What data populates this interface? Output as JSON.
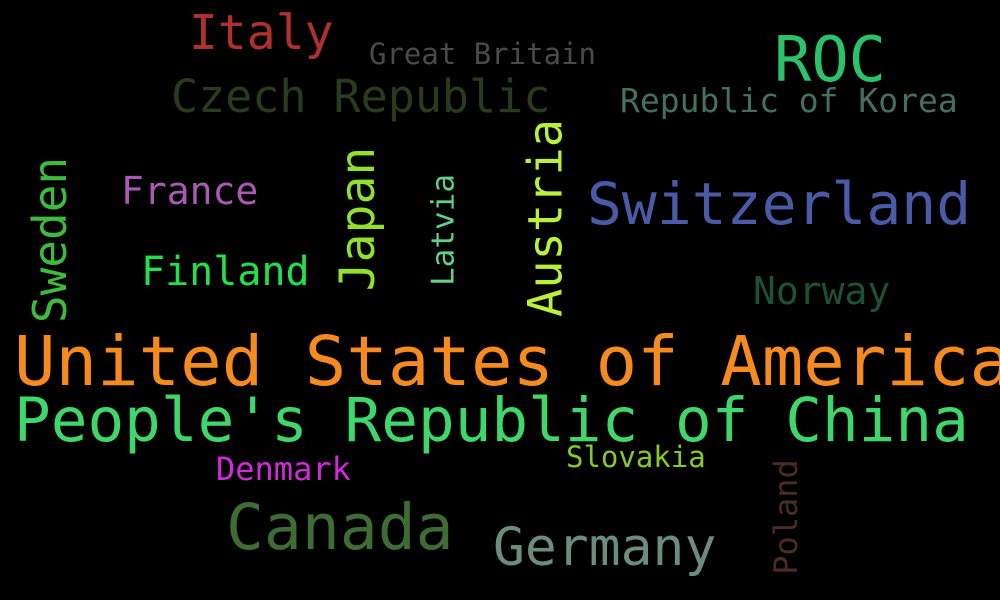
{
  "words": {
    "united_states": {
      "text": "United States of America",
      "color": "#f58a1e"
    },
    "china": {
      "text": "People's Republic of China",
      "color": "#3fd66b"
    },
    "canada": {
      "text": "Canada",
      "color": "#3f6b35"
    },
    "switzerland": {
      "text": "Switzerland",
      "color": "#4a5aa6"
    },
    "germany": {
      "text": "Germany",
      "color": "#6c8c80"
    },
    "czech_republic": {
      "text": "Czech Republic",
      "color": "#2a3a1e"
    },
    "roc": {
      "text": "ROC",
      "color": "#2bc26b"
    },
    "italy": {
      "text": "Italy",
      "color": "#b03030"
    },
    "finland": {
      "text": "Finland",
      "color": "#22e04a"
    },
    "france": {
      "text": "France",
      "color": "#a85ab2"
    },
    "norway": {
      "text": "Norway",
      "color": "#1e5038"
    },
    "republic_of_korea": {
      "text": "Republic of Korea",
      "color": "#456e60"
    },
    "great_britain": {
      "text": "Great Britain",
      "color": "#4a4a4a"
    },
    "denmark": {
      "text": "Denmark",
      "color": "#d22ad8"
    },
    "slovakia": {
      "text": "Slovakia",
      "color": "#86c92a"
    },
    "sweden": {
      "text": "Sweden",
      "color": "#3fba3f"
    },
    "japan": {
      "text": "Japan",
      "color": "#92e02e"
    },
    "austria": {
      "text": "Austria",
      "color": "#b8f03a"
    },
    "latvia": {
      "text": "Latvia",
      "color": "#62d08a"
    },
    "poland": {
      "text": "Poland",
      "color": "#4a2c24"
    }
  }
}
